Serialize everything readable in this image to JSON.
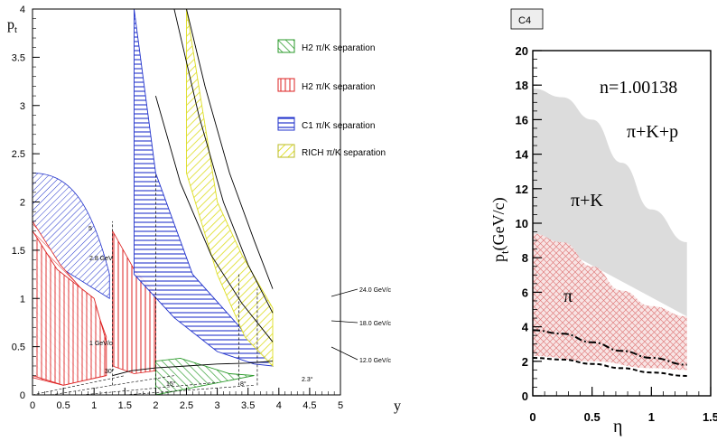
{
  "left_panel": {
    "y_axis_label": "p",
    "y_axis_label_sub": "t",
    "x_axis_label": "y",
    "legend": [
      {
        "label": "H2 π/K separation",
        "color": "#2a9a2a",
        "hatch": "diag-left"
      },
      {
        "label": "H2 π/K separation",
        "color": "#dd2222",
        "hatch": "vertical"
      },
      {
        "label": "C1 π/K separation",
        "color": "#2233cc",
        "hatch": "horizontal"
      },
      {
        "label": "RICH π/K separation",
        "color": "#dddd22",
        "hatch": "diag-right"
      }
    ],
    "annotations": {
      "mom_24": "24.0 GeV/c",
      "mom_18": "18.0 GeV/c",
      "mom_12": "12.0 GeV/c",
      "mom_28": "2.8 GeV",
      "mom_1": "1 GeV/c",
      "ang_30": "30°",
      "ang_15": "15°",
      "ang_8": "8°",
      "ang_23": "2.3°",
      "lbl_5": "5"
    }
  },
  "right_panel": {
    "tag": "C4",
    "y_axis_label": "p",
    "y_axis_label_sub": "t",
    "y_axis_unit": "(GeV/c)",
    "x_axis_label": "η",
    "n_label": "n=1.00138",
    "region_labels": {
      "pkp": "π+K+p",
      "pk": "π+K",
      "pi": "π"
    }
  },
  "chart_data": [
    {
      "type": "area",
      "xlim": [
        0,
        5
      ],
      "ylim": [
        0,
        4
      ],
      "x_ticks": [
        "0",
        "0.5",
        "1",
        "1.5",
        "2",
        "2.5",
        "3",
        "3.5",
        "4",
        "4.5",
        "5"
      ],
      "y_ticks": [
        "0",
        "0.5",
        "1",
        "1.5",
        "2",
        "2.5",
        "3",
        "3.5",
        "4"
      ],
      "series": [
        {
          "name": "H2 π/K separation",
          "color": "#2a9a2a",
          "points": [
            [
              2.0,
              0.0
            ],
            [
              2.0,
              0.35
            ],
            [
              2.4,
              0.38
            ],
            [
              2.8,
              0.3
            ],
            [
              3.2,
              0.22
            ],
            [
              3.6,
              0.2
            ],
            [
              2.8,
              0.1
            ],
            [
              2.0,
              0.0
            ]
          ]
        },
        {
          "name": "H2 π/K separation",
          "color": "#dd2222",
          "points": [
            [
              0.0,
              0.2
            ],
            [
              0.0,
              1.7
            ],
            [
              0.4,
              1.3
            ],
            [
              1.0,
              1.0
            ],
            [
              1.2,
              0.55
            ],
            [
              1.2,
              0.2
            ],
            [
              0.5,
              0.1
            ],
            [
              0.0,
              0.2
            ]
          ]
        },
        {
          "name": "C1 π/K separation",
          "color": "#2233cc",
          "points": [
            [
              1.65,
              4.0
            ],
            [
              2.0,
              2.3
            ],
            [
              2.6,
              1.25
            ],
            [
              3.3,
              0.75
            ],
            [
              3.9,
              0.3
            ],
            [
              3.6,
              0.32
            ],
            [
              3.0,
              0.45
            ],
            [
              2.3,
              0.8
            ],
            [
              1.65,
              1.25
            ],
            [
              1.65,
              4.0
            ]
          ]
        },
        {
          "name": "RICH π/K separation",
          "color": "#dddd22",
          "points": [
            [
              2.5,
              4.0
            ],
            [
              3.0,
              2.0
            ],
            [
              3.4,
              1.45
            ],
            [
              3.9,
              0.9
            ],
            [
              3.9,
              0.3
            ],
            [
              3.45,
              0.6
            ],
            [
              3.0,
              1.25
            ],
            [
              2.5,
              2.3
            ],
            [
              2.5,
              4.0
            ]
          ]
        }
      ]
    },
    {
      "type": "area",
      "xlim": [
        0,
        1.5
      ],
      "ylim": [
        0,
        20
      ],
      "x_ticks": [
        "0",
        "0.5",
        "1",
        "1.5"
      ],
      "y_ticks": [
        "0",
        "2",
        "4",
        "6",
        "8",
        "10",
        "12",
        "14",
        "16",
        "18",
        "20"
      ],
      "series": [
        {
          "name": "π+K+p",
          "color": "#dcdcdc",
          "upper": [
            [
              0,
              17.8
            ],
            [
              0.25,
              17.3
            ],
            [
              0.5,
              16.0
            ],
            [
              0.75,
              13.5
            ],
            [
              1.0,
              10.8
            ],
            [
              1.3,
              8.9
            ]
          ],
          "lower": [
            [
              0,
              9.4
            ],
            [
              1.3,
              4.6
            ]
          ]
        },
        {
          "name": "π",
          "color": "#e48a8a",
          "upper": [
            [
              0,
              9.4
            ],
            [
              0.25,
              8.9
            ],
            [
              0.5,
              7.5
            ],
            [
              0.75,
              6.1
            ],
            [
              1.0,
              5.2
            ],
            [
              1.3,
              4.6
            ]
          ],
          "lower": [
            [
              0,
              2.3
            ],
            [
              0.5,
              2.0
            ],
            [
              1.0,
              1.6
            ],
            [
              1.3,
              1.5
            ]
          ]
        },
        {
          "name": "dash-dot",
          "color": "#000000",
          "points": [
            [
              0,
              3.8
            ],
            [
              0.25,
              3.6
            ],
            [
              0.5,
              3.1
            ],
            [
              0.75,
              2.6
            ],
            [
              1.0,
              2.2
            ],
            [
              1.3,
              1.8
            ]
          ]
        },
        {
          "name": "dashed",
          "color": "#000000",
          "points": [
            [
              0,
              2.2
            ],
            [
              0.25,
              2.1
            ],
            [
              0.5,
              1.85
            ],
            [
              0.75,
              1.6
            ],
            [
              1.0,
              1.35
            ],
            [
              1.3,
              1.15
            ]
          ]
        }
      ]
    }
  ]
}
